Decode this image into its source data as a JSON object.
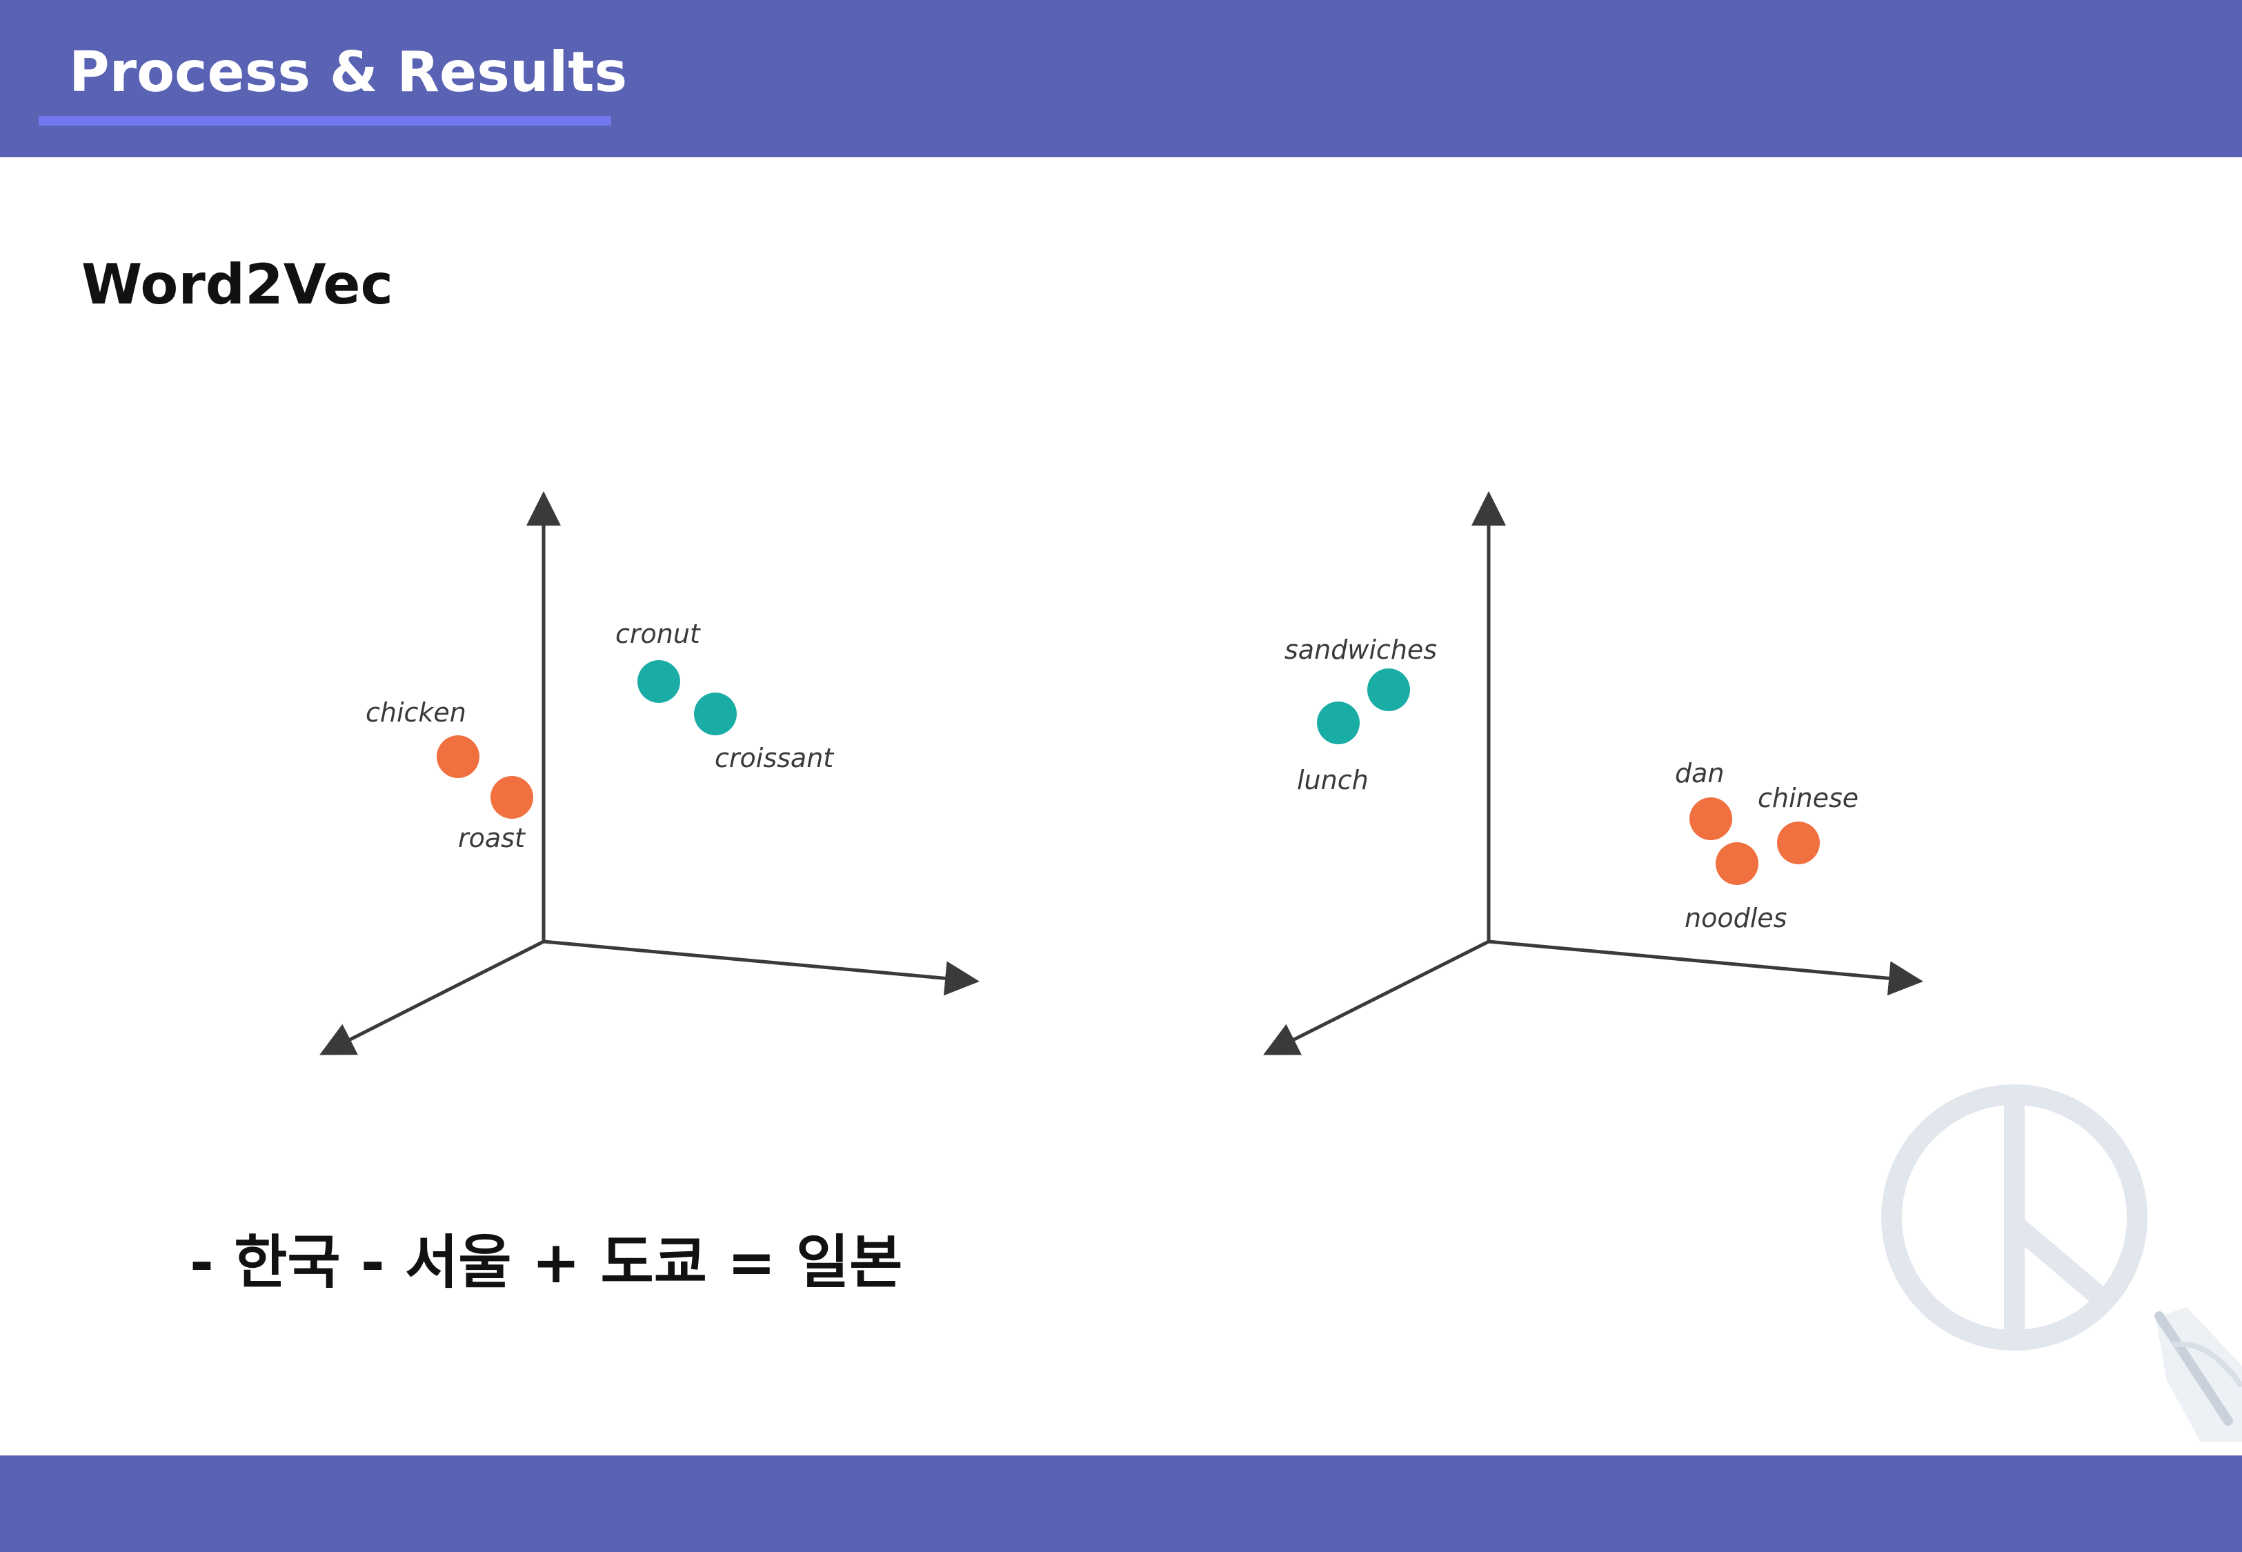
{
  "header": {
    "title": "Process & Results"
  },
  "section": {
    "title": "Word2Vec"
  },
  "colors": {
    "header_bg": "#5a62b4",
    "accent_underline": "#7277ee",
    "cluster_orange": "#f07040",
    "cluster_teal": "#1aada5",
    "axis": "#3a3a3a"
  },
  "diagram_left": {
    "points": [
      {
        "label": "cronut",
        "color": "teal"
      },
      {
        "label": "croissant",
        "color": "teal"
      },
      {
        "label": "chicken",
        "color": "orange"
      },
      {
        "label": "roast",
        "color": "orange"
      }
    ]
  },
  "diagram_right": {
    "points": [
      {
        "label": "sandwiches",
        "color": "teal"
      },
      {
        "label": "lunch",
        "color": "teal"
      },
      {
        "label": "dan",
        "color": "orange"
      },
      {
        "label": "chinese",
        "color": "orange"
      },
      {
        "label": "noodles",
        "color": "orange"
      }
    ]
  },
  "formula": {
    "text": "-  한국 - 서울 + 도쿄 = 일본"
  },
  "decorations": {
    "watermark_icon": "peace-symbol-icon",
    "corner_icon": "pen-hand-icon"
  }
}
